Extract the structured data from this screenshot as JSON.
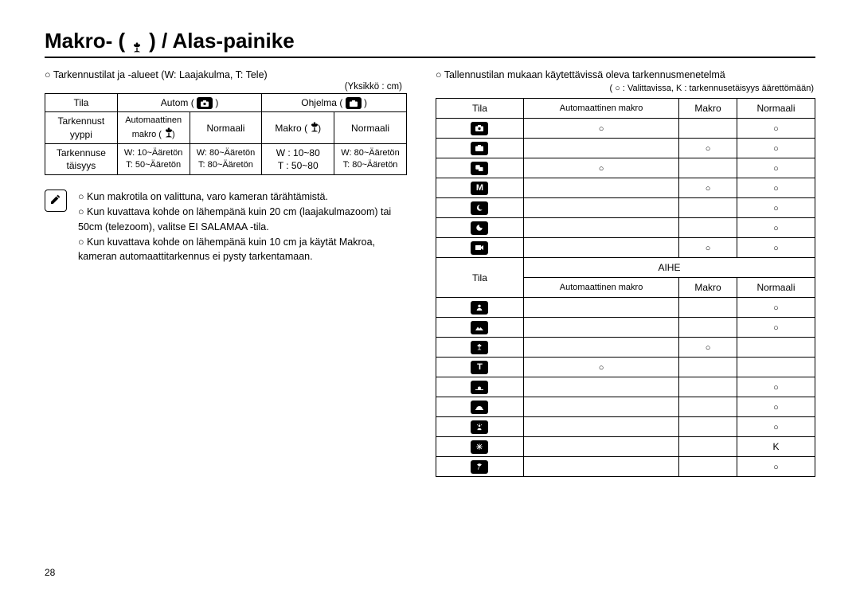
{
  "title_pre": "Makro- (",
  "title_post": ") / Alas-painike",
  "left": {
    "subhead": "Tarkennustilat ja -alueet (W: Laajakulma, T: Tele)",
    "unit": "(Yksikkö : cm)",
    "r1c1": "Tila",
    "r1c2_pre": "Autom (",
    "r1c2_post": ")",
    "r1c3_pre": "Ohjelma (",
    "r1c3_post": ")",
    "r2c1": "Tarkennust\nyyppi",
    "r2c2a": "Automaattinen",
    "r2c2b_pre": "makro (",
    "r2c2b_post": ")",
    "r2c3": "Normaali",
    "r2c4_pre": "Makro (",
    "r2c4_post": ")",
    "r2c5": "Normaali",
    "r3c1": "Tarkennuse\ntäisyys",
    "r3c2": "W: 10~Ääretön\nT: 50~Ääretön",
    "r3c3": "W: 80~Ääretön\nT: 80~Ääretön",
    "r3c4": "W : 10~80\nT : 50~80",
    "r3c5": "W: 80~Ääretön\nT: 80~Ääretön",
    "note1": "Kun makrotila on valittuna, varo kameran tärähtämistä.",
    "note2": "Kun kuvattava kohde on lähempänä kuin 20 cm (laajakulmazoom) tai 50cm (telezoom), valitse EI SALAMAA -tila.",
    "note3": "Kun kuvattava kohde on lähempänä kuin 10 cm ja käytät Makroa, kameran automaattitarkennus ei pysty tarkentamaan."
  },
  "right": {
    "subhead": "Tallennustilan mukaan käytettävissä oleva tarkennusmenetelmä",
    "legend": "( ○ : Valittavissa, K  : tarkennusetäisyys äärettömään)",
    "hdr_tila": "Tila",
    "hdr_auto_macro": "Automaattinen makro",
    "hdr_makro": "Makro",
    "hdr_normaali": "Normaali",
    "aihe": "AIHE",
    "k": "K",
    "rows_top": [
      {
        "label": "camera",
        "am": "o",
        "m": "",
        "n": "o"
      },
      {
        "label": "camera-plus",
        "am": "",
        "m": "o",
        "n": "o"
      },
      {
        "label": "dual",
        "am": "o",
        "m": "",
        "n": "o"
      },
      {
        "label": "m",
        "am": "",
        "m": "o",
        "n": "o"
      },
      {
        "label": "night",
        "am": "",
        "m": "",
        "n": "o"
      },
      {
        "label": "night-c",
        "am": "",
        "m": "",
        "n": "o"
      },
      {
        "label": "movie",
        "am": "",
        "m": "o",
        "n": "o"
      }
    ],
    "rows_bottom": [
      {
        "label": "portrait",
        "am": "",
        "m": "",
        "n": "o"
      },
      {
        "label": "landscape",
        "am": "",
        "m": "",
        "n": "o"
      },
      {
        "label": "closeup",
        "am": "",
        "m": "o",
        "n": ""
      },
      {
        "label": "text",
        "am": "o",
        "m": "",
        "n": ""
      },
      {
        "label": "sunset",
        "am": "",
        "m": "",
        "n": "o"
      },
      {
        "label": "dawn",
        "am": "",
        "m": "",
        "n": "o"
      },
      {
        "label": "backlight",
        "am": "",
        "m": "",
        "n": "o"
      },
      {
        "label": "fireworks",
        "am": "",
        "m": "",
        "n": "K"
      },
      {
        "label": "beach",
        "am": "",
        "m": "",
        "n": "o"
      }
    ]
  },
  "pagenum": "28"
}
